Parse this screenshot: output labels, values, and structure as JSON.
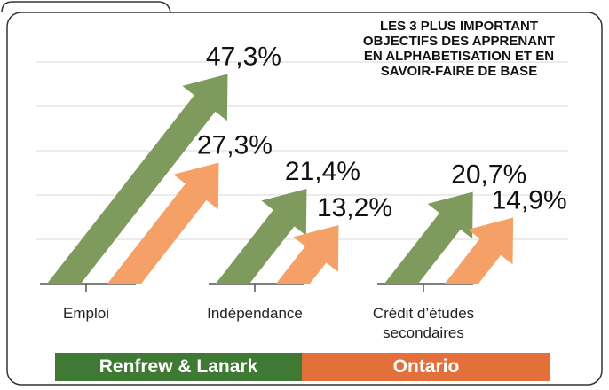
{
  "chart_data": {
    "type": "arrow",
    "title": [
      "LES 3 PLUS IMPORTANT",
      "OBJECTIFS DES APPRENANT",
      "EN ALPHABETISATION ET EN",
      "SAVOIR-FAIRE DE BASE"
    ],
    "categories": [
      "Emploi",
      "Indépendance",
      "Crédit d’études secondaires"
    ],
    "series": [
      {
        "name": "Renfrew & Lanark",
        "color": "#7f9a5d",
        "legend_color": "#3f7a34",
        "values": [
          47.3,
          21.4,
          20.7
        ],
        "value_labels": [
          "47,3%",
          "21,4%",
          "20,7%"
        ]
      },
      {
        "name": "Ontario",
        "color": "#f4a066",
        "legend_color": "#e3703a",
        "values": [
          27.3,
          13.2,
          14.9
        ],
        "value_labels": [
          "27,3%",
          "13,2%",
          "14,9%"
        ]
      }
    ],
    "ylim": [
      0,
      50
    ],
    "yticks": [
      10,
      20,
      30,
      40,
      50
    ],
    "grid": true
  }
}
